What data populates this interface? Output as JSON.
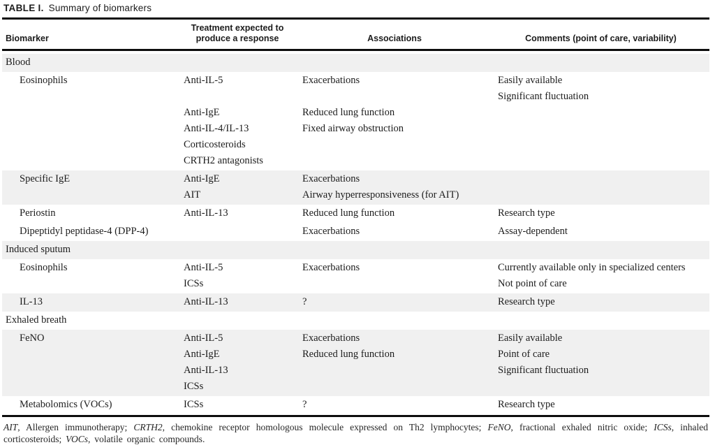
{
  "title": {
    "label": "TABLE I.",
    "text": "Summary of biomarkers"
  },
  "columns": {
    "biomarker": "Biomarker",
    "treatment_line1": "Treatment expected to",
    "treatment_line2": "produce a response",
    "associations": "Associations",
    "comments": "Comments (point of care, variability)"
  },
  "rows": [
    {
      "type": "section",
      "shaded": true,
      "label": "Blood"
    },
    {
      "type": "entry",
      "shaded": false,
      "biomarker": "Eosinophils",
      "treatments": [
        "Anti-IL-5",
        "",
        "Anti-IgE",
        "Anti-IL-4/IL-13",
        "Corticosteroids",
        "CRTH2 antagonists"
      ],
      "associations": [
        "Exacerbations",
        "",
        "Reduced lung function",
        "Fixed airway obstruction",
        "",
        ""
      ],
      "comments": [
        "Easily available",
        "Significant fluctuation",
        "",
        "",
        "",
        ""
      ]
    },
    {
      "type": "entry",
      "shaded": true,
      "biomarker": "Specific IgE",
      "treatments": [
        "Anti-IgE",
        "AIT"
      ],
      "associations": [
        "Exacerbations",
        "Airway hyperresponsiveness (for AIT)"
      ],
      "comments": [
        "",
        ""
      ]
    },
    {
      "type": "entry",
      "shaded": false,
      "biomarker": "Periostin",
      "treatments": [
        "Anti-IL-13"
      ],
      "associations": [
        "Reduced lung function"
      ],
      "comments": [
        "Research type"
      ]
    },
    {
      "type": "entry",
      "shaded": false,
      "biomarker": "Dipeptidyl peptidase-4 (DPP-4)",
      "treatments": [
        ""
      ],
      "associations": [
        "Exacerbations"
      ],
      "comments": [
        "Assay-dependent"
      ]
    },
    {
      "type": "section",
      "shaded": true,
      "label": "Induced sputum"
    },
    {
      "type": "entry",
      "shaded": false,
      "biomarker": "Eosinophils",
      "treatments": [
        "Anti-IL-5",
        "ICSs"
      ],
      "associations": [
        "Exacerbations",
        ""
      ],
      "comments": [
        "Currently available only in specialized centers",
        "Not point of care"
      ]
    },
    {
      "type": "entry",
      "shaded": true,
      "biomarker": "IL-13",
      "treatments": [
        "Anti-IL-13"
      ],
      "associations": [
        "?"
      ],
      "comments": [
        "Research type"
      ]
    },
    {
      "type": "section",
      "shaded": false,
      "label": "Exhaled breath"
    },
    {
      "type": "entry",
      "shaded": true,
      "biomarker": "FeNO",
      "treatments": [
        "Anti-IL-5",
        "Anti-IgE",
        "Anti-IL-13",
        "ICSs"
      ],
      "associations": [
        "Exacerbations",
        "Reduced lung function",
        "",
        ""
      ],
      "comments": [
        "Easily available",
        "Point of care",
        "Significant fluctuation",
        ""
      ]
    },
    {
      "type": "entry",
      "shaded": false,
      "biomarker": "Metabolomics (VOCs)",
      "treatments": [
        "ICSs"
      ],
      "associations": [
        "?"
      ],
      "comments": [
        "Research type"
      ]
    }
  ],
  "footnote": {
    "segments": [
      {
        "text": "AIT",
        "italic": true
      },
      {
        "text": ", Allergen immunotherapy; ",
        "italic": false
      },
      {
        "text": "CRTH2",
        "italic": true
      },
      {
        "text": ", chemokine receptor homologous molecule expressed on Th2 lymphocytes; ",
        "italic": false
      },
      {
        "text": "FeNO",
        "italic": true
      },
      {
        "text": ", fractional exhaled nitric oxide; ",
        "italic": false
      },
      {
        "text": "ICSs",
        "italic": true
      },
      {
        "text": ", inhaled corticosteroids; ",
        "italic": false
      },
      {
        "text": "VOCs",
        "italic": true
      },
      {
        "text": ", volatile organic compounds.",
        "italic": false
      }
    ]
  },
  "colors": {
    "shaded_row_bg": "#f0f0f0",
    "rule": "#0d0d0d",
    "text": "#1c1c1c"
  }
}
